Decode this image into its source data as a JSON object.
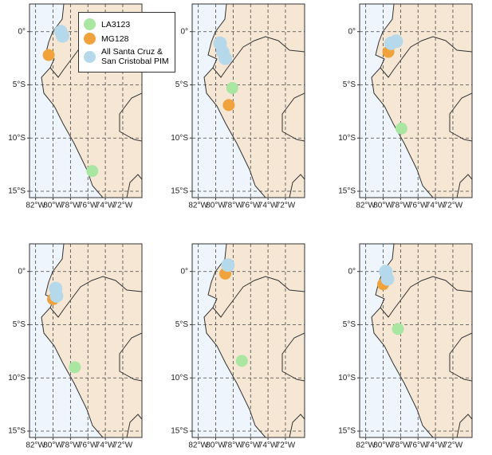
{
  "map": {
    "type": "scatter",
    "xlim": [
      -82.7,
      -69.8
    ],
    "ylim": [
      -15.6,
      2.6
    ],
    "xticks": [
      {
        "value": -82,
        "label": "82°W"
      },
      {
        "value": -80,
        "label": "80°W"
      },
      {
        "value": -78,
        "label": "78°W"
      },
      {
        "value": -76,
        "label": "76°W"
      },
      {
        "value": -74,
        "label": "74°W"
      },
      {
        "value": -72,
        "label": "72°W"
      }
    ],
    "yticks": [
      {
        "value": 0,
        "label": "0°"
      },
      {
        "value": -5,
        "label": "5°S"
      },
      {
        "value": -10,
        "label": "10°S"
      },
      {
        "value": -15,
        "label": "15°S"
      }
    ],
    "grid": true,
    "series": [
      {
        "name": "LA3123",
        "color": "#a8e6a1"
      },
      {
        "name": "MG128",
        "color": "#f0a33c"
      },
      {
        "name": "All Santa Cruz & San Cristobal PIM",
        "color": "#b5d8ea"
      }
    ],
    "panels": [
      {
        "series": [
          {
            "x": [
              -75.5
            ],
            "y": [
              -13.1
            ]
          },
          {
            "x": [
              -80.5
            ],
            "y": [
              -2.2
            ]
          },
          {
            "x": [
              -79.1,
              -78.9
            ],
            "y": [
              0.0,
              -0.4
            ]
          }
        ]
      },
      {
        "series": [
          {
            "x": [
              -78.1
            ],
            "y": [
              -5.3
            ]
          },
          {
            "x": [
              -78.5
            ],
            "y": [
              -6.9
            ]
          },
          {
            "x": [
              -79.5,
              -79.2,
              -78.9
            ],
            "y": [
              -1.1,
              -1.9,
              -2.5
            ]
          }
        ]
      },
      {
        "series": [
          {
            "x": [
              -77.9
            ],
            "y": [
              -9.1
            ]
          },
          {
            "x": [
              -79.4
            ],
            "y": [
              -1.9
            ]
          },
          {
            "x": [
              -79.1,
              -78.5
            ],
            "y": [
              -1.1,
              -0.9
            ]
          }
        ]
      },
      {
        "series": [
          {
            "x": [
              -77.5
            ],
            "y": [
              -9.0
            ]
          },
          {
            "x": [
              -80.0
            ],
            "y": [
              -2.6
            ]
          },
          {
            "x": [
              -79.7,
              -79.6
            ],
            "y": [
              -1.6,
              -2.3
            ]
          }
        ]
      },
      {
        "series": [
          {
            "x": [
              -77.0
            ],
            "y": [
              -8.4
            ]
          },
          {
            "x": [
              -78.9
            ],
            "y": [
              -0.2
            ]
          },
          {
            "x": [
              -78.6
            ],
            "y": [
              0.6
            ]
          }
        ]
      },
      {
        "series": [
          {
            "x": [
              -78.3
            ],
            "y": [
              -5.4
            ]
          },
          {
            "x": [
              -80.0
            ],
            "y": [
              -1.2
            ]
          },
          {
            "x": [
              -79.7,
              -79.5
            ],
            "y": [
              0.0,
              -0.7
            ]
          }
        ]
      }
    ]
  }
}
